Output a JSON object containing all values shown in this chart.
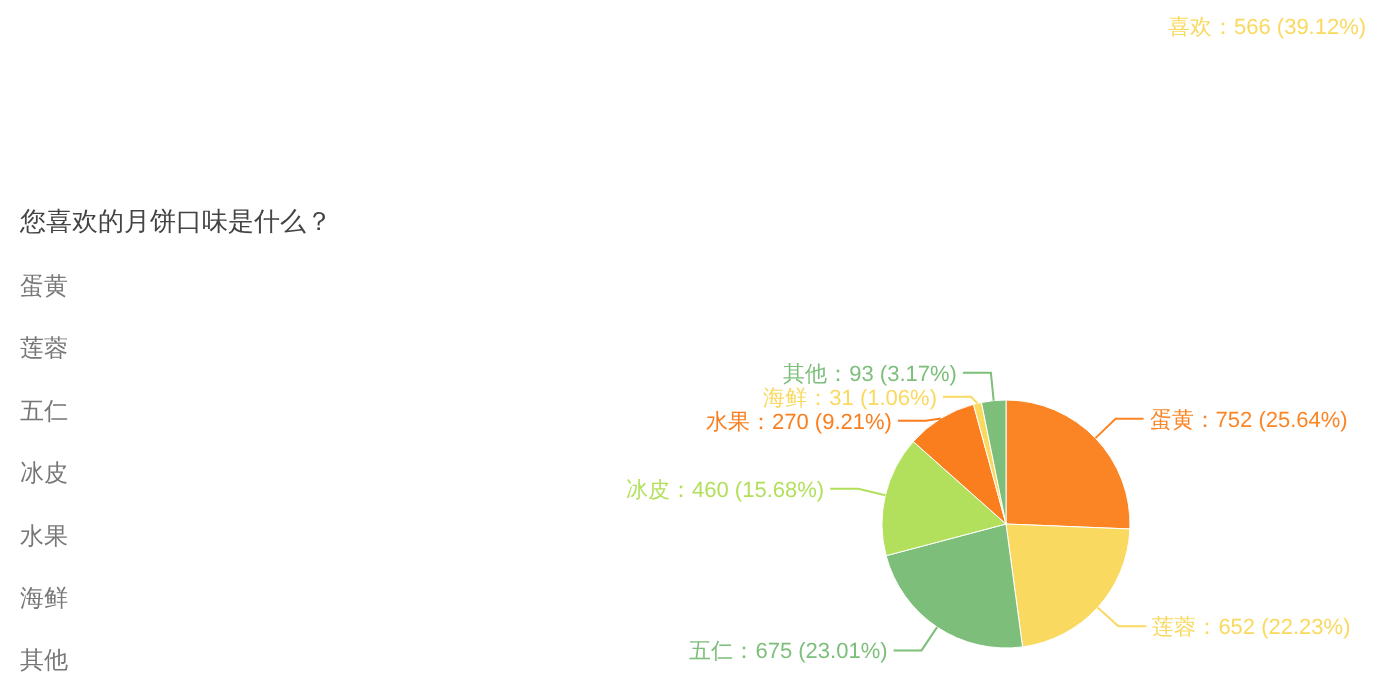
{
  "chart_data": [
    {
      "type": "other",
      "annotations": [
        "喜欢：566 (39.12%)"
      ],
      "colors": [
        "#f9d95f"
      ]
    },
    {
      "type": "pie",
      "title": "您喜欢的月饼口味是什么？",
      "categories": [
        "蛋黄",
        "莲蓉",
        "五仁",
        "冰皮",
        "水果",
        "海鲜",
        "其他"
      ],
      "values": [
        752,
        652,
        675,
        460,
        270,
        31,
        93
      ],
      "colors": [
        "#fb8524",
        "#f9d95f",
        "#7dbf7a",
        "#b3e05c",
        "#fa7e1e",
        "#f9d95f",
        "#7dbf7a"
      ],
      "value_labels": [
        "：752 (25.64%)",
        "：652 (22.23%)",
        "：675 (23.01%)",
        "：460 (15.68%)",
        "：270 (9.21%)",
        "：31 (1.06%)",
        "：93 (3.17%)"
      ],
      "annotations": [
        "蛋黄",
        "莲蓉",
        "五仁",
        "冰皮",
        "水果",
        "海鲜",
        "其他"
      ]
    }
  ]
}
